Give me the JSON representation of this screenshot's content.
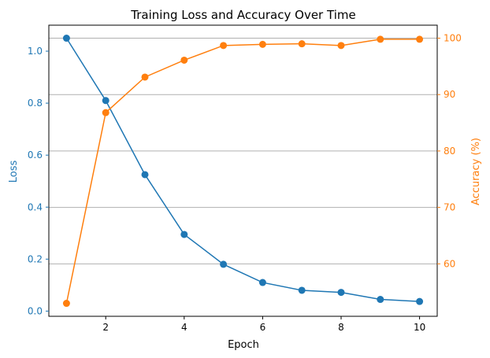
{
  "chart_data": {
    "type": "line",
    "title": "Training Loss and Accuracy Over Time",
    "xlabel": "Epoch",
    "ylabel_left": "Loss",
    "ylabel_right": "Accuracy (%)",
    "x": [
      1,
      2,
      3,
      4,
      5,
      6,
      7,
      8,
      9,
      10
    ],
    "xlim": [
      0.55,
      10.45
    ],
    "xticks": [
      2,
      4,
      6,
      8,
      10
    ],
    "ylim_left": [
      -0.02,
      1.1
    ],
    "yticks_left": [
      0.0,
      0.2,
      0.4,
      0.6,
      0.8,
      1.0
    ],
    "ylim_right": [
      50.7,
      102.3
    ],
    "yticks_right": [
      60,
      70,
      80,
      90,
      100
    ],
    "grid": "horizontal lines at right-axis ticks",
    "series": [
      {
        "axis": "left",
        "color": "#1f77b4",
        "values": [
          1.05,
          0.81,
          0.525,
          0.295,
          0.18,
          0.11,
          0.08,
          0.072,
          0.045,
          0.037
        ]
      },
      {
        "axis": "right",
        "color": "#ff7f0e",
        "values": [
          53.0,
          86.8,
          93.1,
          96.1,
          98.7,
          98.9,
          99.0,
          98.7,
          99.8,
          99.8
        ]
      }
    ]
  }
}
